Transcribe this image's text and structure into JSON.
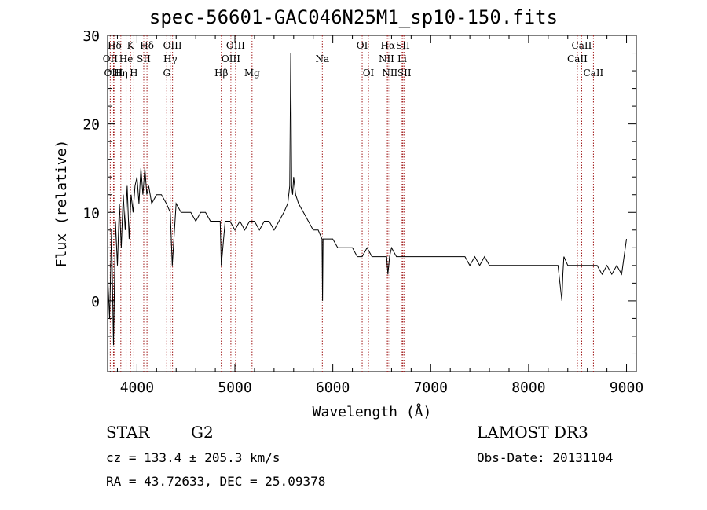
{
  "chart_data": {
    "type": "line",
    "title": "spec-56601-GAC046N25M1_sp10-150.fits",
    "xlabel": "Wavelength (Å)",
    "ylabel": "Flux (relative)",
    "xlim": [
      3700,
      9100
    ],
    "ylim": [
      -8,
      30
    ],
    "xticks": [
      4000,
      5000,
      6000,
      7000,
      8000,
      9000
    ],
    "yticks": [
      0,
      10,
      20,
      30
    ],
    "grid": false,
    "series": [
      {
        "name": "flux",
        "x": [
          3700,
          3720,
          3740,
          3760,
          3780,
          3800,
          3820,
          3840,
          3860,
          3880,
          3900,
          3920,
          3940,
          3960,
          3980,
          4000,
          4020,
          4040,
          4060,
          4080,
          4100,
          4120,
          4150,
          4200,
          4250,
          4300,
          4340,
          4360,
          4400,
          4450,
          4500,
          4550,
          4600,
          4650,
          4700,
          4750,
          4800,
          4850,
          4861,
          4900,
          4950,
          5000,
          5050,
          5100,
          5150,
          5200,
          5250,
          5300,
          5350,
          5400,
          5450,
          5500,
          5540,
          5560,
          5570,
          5580,
          5590,
          5600,
          5620,
          5650,
          5700,
          5750,
          5800,
          5850,
          5890,
          5895,
          5900,
          5950,
          6000,
          6050,
          6100,
          6150,
          6200,
          6250,
          6300,
          6350,
          6400,
          6450,
          6500,
          6550,
          6563,
          6580,
          6600,
          6650,
          6700,
          6750,
          6800,
          6850,
          6900,
          6950,
          7000,
          7050,
          7100,
          7150,
          7200,
          7250,
          7300,
          7350,
          7400,
          7450,
          7500,
          7550,
          7600,
          7650,
          7700,
          7750,
          7800,
          7850,
          7900,
          7950,
          8000,
          8050,
          8100,
          8150,
          8200,
          8250,
          8300,
          8340,
          8350,
          8360,
          8400,
          8450,
          8500,
          8550,
          8600,
          8650,
          8700,
          8750,
          8800,
          8850,
          8900,
          8950,
          9000
        ],
        "y": [
          3,
          -2,
          8,
          -5,
          9,
          4,
          11,
          6,
          12,
          8,
          13,
          7,
          12,
          10,
          13,
          14,
          11,
          15,
          12,
          15,
          12,
          13,
          11,
          12,
          12,
          11,
          10,
          4,
          11,
          10,
          10,
          10,
          9,
          10,
          10,
          9,
          9,
          9,
          4,
          9,
          9,
          8,
          9,
          8,
          9,
          9,
          8,
          9,
          9,
          8,
          9,
          10,
          11,
          13,
          28,
          13,
          12,
          14,
          12,
          11,
          10,
          9,
          8,
          8,
          7,
          0,
          7,
          7,
          7,
          6,
          6,
          6,
          6,
          5,
          5,
          6,
          5,
          5,
          5,
          5,
          3,
          5,
          6,
          5,
          5,
          5,
          5,
          5,
          5,
          5,
          5,
          5,
          5,
          5,
          5,
          5,
          5,
          5,
          4,
          5,
          4,
          5,
          4,
          4,
          4,
          4,
          4,
          4,
          4,
          4,
          4,
          4,
          4,
          4,
          4,
          4,
          4,
          0,
          3,
          5,
          4,
          4,
          4,
          4,
          4,
          4,
          4,
          3,
          4,
          3,
          4,
          3,
          7
        ]
      }
    ],
    "lines": [
      {
        "label": "Hδ",
        "x": 3771
      },
      {
        "label": "OII",
        "x": 3727
      },
      {
        "label": "OIII",
        "x": 3760
      },
      {
        "label": "K",
        "x": 3934
      },
      {
        "label": "He",
        "x": 3889
      },
      {
        "label": "Hη",
        "x": 3835
      },
      {
        "label": "H",
        "x": 3968
      },
      {
        "label": "SII",
        "x": 4069
      },
      {
        "label": "Hδ",
        "x": 4102
      },
      {
        "label": "OIII",
        "x": 4363
      },
      {
        "label": "Hγ",
        "x": 4340
      },
      {
        "label": "G",
        "x": 4304
      },
      {
        "label": "Hβ",
        "x": 4861
      },
      {
        "label": "OIII",
        "x": 4959
      },
      {
        "label": "OIII",
        "x": 5007
      },
      {
        "label": "Mg",
        "x": 5175
      },
      {
        "label": "Na",
        "x": 5893
      },
      {
        "label": "OI",
        "x": 6300
      },
      {
        "label": "OI",
        "x": 6364
      },
      {
        "label": "Hα",
        "x": 6563
      },
      {
        "label": "NII",
        "x": 6548
      },
      {
        "label": "NII",
        "x": 6583
      },
      {
        "label": "Li",
        "x": 6708
      },
      {
        "label": "SII",
        "x": 6716
      },
      {
        "label": "SII",
        "x": 6731
      },
      {
        "label": "CaII",
        "x": 8498
      },
      {
        "label": "CaII",
        "x": 8542
      },
      {
        "label": "CaII",
        "x": 8662
      }
    ],
    "line_labels": [
      {
        "text": "Hδ",
        "x": 3771,
        "row": 1
      },
      {
        "text": "K",
        "x": 3934,
        "row": 1
      },
      {
        "text": "Hδ",
        "x": 4102,
        "row": 1
      },
      {
        "text": "OIII",
        "x": 4363,
        "row": 1
      },
      {
        "text": "OIII",
        "x": 5007,
        "row": 1
      },
      {
        "text": "OI",
        "x": 6300,
        "row": 1
      },
      {
        "text": "Hα",
        "x": 6563,
        "row": 1
      },
      {
        "text": "SII",
        "x": 6716,
        "row": 1
      },
      {
        "text": "CaII",
        "x": 8542,
        "row": 1
      },
      {
        "text": "OII",
        "x": 3727,
        "row": 2
      },
      {
        "text": "He",
        "x": 3889,
        "row": 2
      },
      {
        "text": "SII",
        "x": 4069,
        "row": 2
      },
      {
        "text": "Hγ",
        "x": 4340,
        "row": 2
      },
      {
        "text": "OIII",
        "x": 4959,
        "row": 2
      },
      {
        "text": "Na",
        "x": 5893,
        "row": 2
      },
      {
        "text": "NII",
        "x": 6548,
        "row": 2
      },
      {
        "text": "Li",
        "x": 6708,
        "row": 2
      },
      {
        "text": "CaII",
        "x": 8498,
        "row": 2
      },
      {
        "text": "OIII",
        "x": 3760,
        "row": 3
      },
      {
        "text": "Hη",
        "x": 3835,
        "row": 3
      },
      {
        "text": "H",
        "x": 3968,
        "row": 3
      },
      {
        "text": "G",
        "x": 4304,
        "row": 3
      },
      {
        "text": "Hβ",
        "x": 4861,
        "row": 3
      },
      {
        "text": "Mg",
        "x": 5175,
        "row": 3
      },
      {
        "text": "OI",
        "x": 6364,
        "row": 3
      },
      {
        "text": "NII",
        "x": 6583,
        "row": 3
      },
      {
        "text": "SII",
        "x": 6731,
        "row": 3
      },
      {
        "text": "CaII",
        "x": 8662,
        "row": 3
      }
    ],
    "line_color": "#a01818",
    "spectrum_color": "#000000"
  },
  "info": {
    "class": "STAR",
    "subclass": "G2",
    "cz": "cz = 133.4 ± 205.3 km/s",
    "radec": "RA =  43.72633, DEC =  25.09378",
    "survey": "LAMOST DR3",
    "obsdate": "Obs-Date: 20131104"
  }
}
